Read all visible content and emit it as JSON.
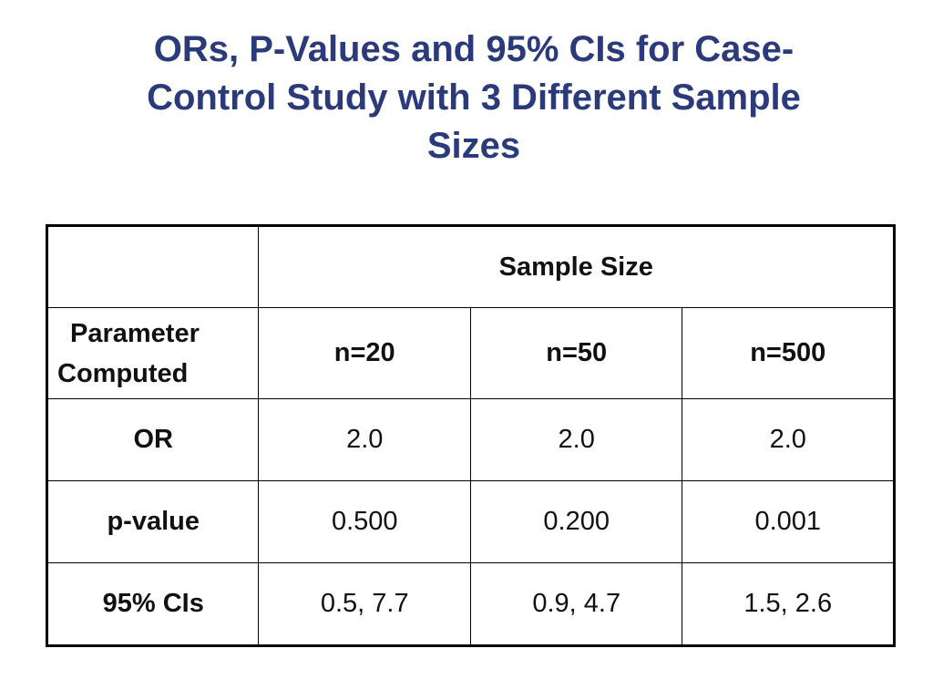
{
  "slide": {
    "title_line1": "ORs, P-Values and 95% CIs for Case-",
    "title_line2": "Control Study with 3 Different Sample",
    "title_line3": "Sizes"
  },
  "table": {
    "spanning_header": "Sample Size",
    "param_header_line1": "Parameter",
    "param_header_line2": "Computed",
    "columns": [
      "n=20",
      "n=50",
      "n=500"
    ],
    "rows": [
      {
        "label": "OR",
        "values": [
          "2.0",
          "2.0",
          "2.0"
        ]
      },
      {
        "label": "p-value",
        "values": [
          "0.500",
          "0.200",
          "0.001"
        ]
      },
      {
        "label": "95% CIs",
        "values": [
          "0.5, 7.7",
          "0.9, 4.7",
          "1.5, 2.6"
        ]
      }
    ]
  }
}
